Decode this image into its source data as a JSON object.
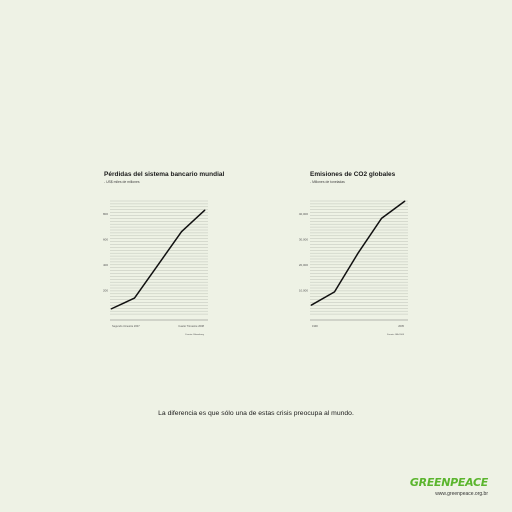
{
  "chart_data": [
    {
      "type": "line",
      "title": "Pérdidas del sistema bancario mundial",
      "subtitle": "- US$ miles de millones",
      "y_ticks": [
        "800",
        "600",
        "400",
        "200"
      ],
      "x_tick_labels": [
        "Segundo trimestre 2007",
        "Cuarto Trimestre 2008"
      ],
      "source": "Fuente: Bloomberg",
      "ylim": [
        0,
        900
      ],
      "series": [
        {
          "x": [
            0,
            1,
            2,
            3,
            4
          ],
          "values": [
            55,
            140,
            400,
            660,
            830
          ]
        }
      ]
    },
    {
      "type": "line",
      "title": "Emisiones de CO2 globales",
      "subtitle": "- Millones de toneladas",
      "y_ticks": [
        "40,000",
        "30,000",
        "20,000",
        "10,000"
      ],
      "x_tick_labels": [
        "1990",
        "2005"
      ],
      "source": "Fuente: IEA 2008",
      "ylim": [
        0,
        43000
      ],
      "series": [
        {
          "x": [
            0,
            1,
            2,
            3,
            4
          ],
          "values": [
            4000,
            9000,
            23500,
            36500,
            43000
          ]
        }
      ]
    }
  ],
  "tagline": "La diferencia es que sólo una de estas crisis preocupa al mundo.",
  "brand": {
    "logo_text": "GREENPEACE",
    "url": "www.greenpeace.org.br",
    "color": "#5bb52e"
  }
}
